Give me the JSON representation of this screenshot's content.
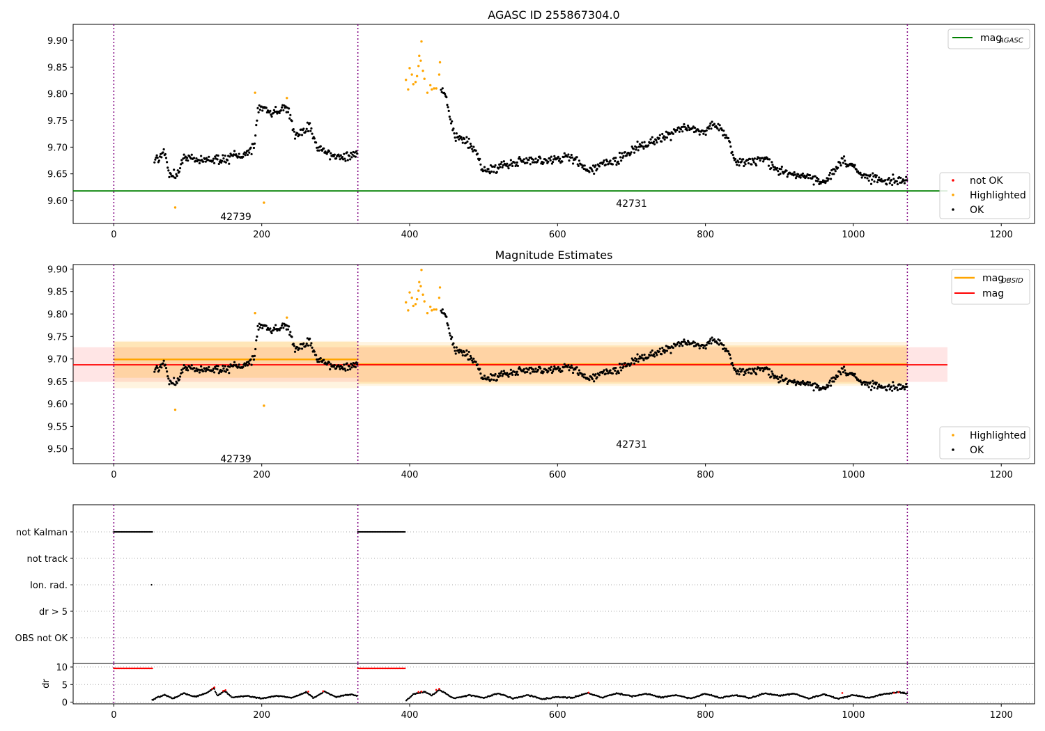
{
  "chart_data": [
    {
      "type": "scatter",
      "title": "AGASC ID 255867304.0",
      "x_ticks": [
        0,
        200,
        400,
        600,
        800,
        1000,
        1200
      ],
      "y_ticks": [
        "9.60",
        "9.65",
        "9.70",
        "9.75",
        "9.80",
        "9.85",
        "9.90"
      ],
      "xlim": [
        -55,
        1245
      ],
      "ylim": [
        9.557,
        9.93
      ],
      "mag_agasc": 9.618,
      "obsid_boundaries": [
        0,
        330,
        1073
      ],
      "obsid_labels": [
        {
          "text": "42739",
          "x": 165,
          "y": 9.57
        },
        {
          "text": "42731",
          "x": 700,
          "y": 9.595
        }
      ],
      "legend_upper": [
        {
          "name": "mag",
          "sub": "AGASC",
          "color": "#008000"
        }
      ],
      "legend_lower": [
        {
          "name": "not OK",
          "color": "#ff0000"
        },
        {
          "name": "Highlighted",
          "color": "#ffa500"
        },
        {
          "name": "OK",
          "color": "#000000"
        }
      ],
      "legend_upper_position": "top-right",
      "legend_lower_position": "bottom-right",
      "grid": false,
      "trend": [
        [
          55,
          9.675
        ],
        [
          70,
          9.69
        ],
        [
          75,
          9.65
        ],
        [
          85,
          9.645
        ],
        [
          95,
          9.685
        ],
        [
          120,
          9.675
        ],
        [
          150,
          9.678
        ],
        [
          175,
          9.683
        ],
        [
          190,
          9.7
        ],
        [
          195,
          9.775
        ],
        [
          215,
          9.765
        ],
        [
          235,
          9.775
        ],
        [
          245,
          9.72
        ],
        [
          265,
          9.74
        ],
        [
          275,
          9.695
        ],
        [
          300,
          9.682
        ],
        [
          330,
          9.684
        ],
        [
          395,
          9.826
        ],
        [
          420,
          9.815
        ],
        [
          440,
          9.83
        ],
        [
          450,
          9.782
        ],
        [
          460,
          9.725
        ],
        [
          475,
          9.712
        ],
        [
          490,
          9.69
        ],
        [
          500,
          9.655
        ],
        [
          540,
          9.672
        ],
        [
          580,
          9.675
        ],
        [
          620,
          9.68
        ],
        [
          640,
          9.655
        ],
        [
          660,
          9.668
        ],
        [
          680,
          9.675
        ],
        [
          710,
          9.7
        ],
        [
          740,
          9.715
        ],
        [
          765,
          9.735
        ],
        [
          800,
          9.73
        ],
        [
          810,
          9.748
        ],
        [
          830,
          9.72
        ],
        [
          840,
          9.672
        ],
        [
          880,
          9.675
        ],
        [
          900,
          9.655
        ],
        [
          940,
          9.645
        ],
        [
          960,
          9.63
        ],
        [
          985,
          9.675
        ],
        [
          1000,
          9.665
        ],
        [
          1010,
          9.645
        ],
        [
          1040,
          9.64
        ],
        [
          1073,
          9.636
        ]
      ],
      "highlighted_points": [
        [
          83,
          9.587
        ],
        [
          203,
          9.596
        ],
        [
          191,
          9.802
        ],
        [
          234,
          9.792
        ],
        [
          395,
          9.826
        ],
        [
          398,
          9.808
        ],
        [
          400,
          9.848
        ],
        [
          403,
          9.836
        ],
        [
          405,
          9.818
        ],
        [
          408,
          9.822
        ],
        [
          410,
          9.833
        ],
        [
          412,
          9.852
        ],
        [
          413,
          9.871
        ],
        [
          415,
          9.862
        ],
        [
          416,
          9.898
        ],
        [
          418,
          9.843
        ],
        [
          420,
          9.828
        ],
        [
          424,
          9.802
        ],
        [
          428,
          9.816
        ],
        [
          430,
          9.808
        ],
        [
          433,
          9.81
        ],
        [
          436,
          9.81
        ],
        [
          440,
          9.836
        ],
        [
          441,
          9.859
        ]
      ]
    },
    {
      "type": "scatter",
      "title": "Magnitude Estimates",
      "x_ticks": [
        0,
        200,
        400,
        600,
        800,
        1000,
        1200
      ],
      "y_ticks": [
        "9.50",
        "9.55",
        "9.60",
        "9.65",
        "9.70",
        "9.75",
        "9.80",
        "9.85",
        "9.90"
      ],
      "xlim": [
        -55,
        1245
      ],
      "ylim": [
        9.467,
        9.91
      ],
      "mag": 9.687,
      "mag_band": [
        9.649,
        9.726
      ],
      "mag_obsid": [
        {
          "x0": 0,
          "x1": 330,
          "value": 9.699,
          "inner": [
            9.658,
            9.738
          ],
          "outer": [
            9.635,
            9.74
          ]
        },
        {
          "x0": 330,
          "x1": 1073,
          "value": 9.688,
          "inner": [
            9.645,
            9.73
          ],
          "outer": [
            9.64,
            9.738
          ]
        }
      ],
      "obsid_boundaries": [
        0,
        330,
        1073
      ],
      "obsid_labels": [
        {
          "text": "42739",
          "x": 165,
          "y": 9.478
        },
        {
          "text": "42731",
          "x": 700,
          "y": 9.51
        }
      ],
      "legend_upper": [
        {
          "name": "mag",
          "sub": "OBSID",
          "color": "#ffa500"
        },
        {
          "name": "mag",
          "sub": "",
          "color": "#ff0000"
        }
      ],
      "legend_lower": [
        {
          "name": "Highlighted",
          "color": "#ffa500"
        },
        {
          "name": "OK",
          "color": "#000000"
        }
      ],
      "legend_upper_position": "top-right",
      "legend_lower_position": "bottom-right",
      "grid": false
    },
    {
      "type": "scatter",
      "flags": [
        "not Kalman",
        "not track",
        "Ion. rad.",
        "dr > 5",
        "OBS not OK"
      ],
      "flag_segments": [
        {
          "flag": "not Kalman",
          "x0": 0,
          "x1": 52
        },
        {
          "flag": "not Kalman",
          "x0": 330,
          "x1": 395
        },
        {
          "flag": "Ion. rad.",
          "x0": 51,
          "x1": 51
        }
      ],
      "dr_label": "dr",
      "dr_ticks": [
        "0",
        "5",
        "10"
      ],
      "dr_ylim": [
        -0.5,
        11
      ],
      "dr_saturated": [
        {
          "x0": 0,
          "x1": 52,
          "value": 9.6
        },
        {
          "x0": 330,
          "x1": 395,
          "value": 9.6
        }
      ],
      "dr_trend": [
        [
          52,
          0.5
        ],
        [
          60,
          1.5
        ],
        [
          70,
          2.0
        ],
        [
          80,
          1.0
        ],
        [
          95,
          2.5
        ],
        [
          110,
          1.5
        ],
        [
          125,
          2.5
        ],
        [
          135,
          4.0
        ],
        [
          140,
          1.8
        ],
        [
          150,
          3.2
        ],
        [
          160,
          1.3
        ],
        [
          180,
          1.8
        ],
        [
          200,
          1.0
        ],
        [
          220,
          1.8
        ],
        [
          240,
          1.2
        ],
        [
          260,
          2.8
        ],
        [
          270,
          1.2
        ],
        [
          285,
          3.0
        ],
        [
          300,
          1.5
        ],
        [
          320,
          2.2
        ],
        [
          330,
          1.8
        ],
        [
          395,
          0.5
        ],
        [
          405,
          2.2
        ],
        [
          420,
          3.0
        ],
        [
          430,
          1.8
        ],
        [
          440,
          3.5
        ],
        [
          460,
          1.0
        ],
        [
          480,
          2.0
        ],
        [
          500,
          1.2
        ],
        [
          520,
          2.5
        ],
        [
          540,
          1.0
        ],
        [
          560,
          2.0
        ],
        [
          580,
          0.8
        ],
        [
          600,
          1.5
        ],
        [
          620,
          1.2
        ],
        [
          640,
          2.6
        ],
        [
          660,
          1.3
        ],
        [
          680,
          2.5
        ],
        [
          700,
          1.6
        ],
        [
          720,
          2.4
        ],
        [
          740,
          1.3
        ],
        [
          760,
          2.0
        ],
        [
          780,
          1.0
        ],
        [
          800,
          2.4
        ],
        [
          820,
          1.2
        ],
        [
          840,
          2.0
        ],
        [
          860,
          1.1
        ],
        [
          880,
          2.5
        ],
        [
          900,
          1.8
        ],
        [
          920,
          2.4
        ],
        [
          940,
          1.0
        ],
        [
          960,
          2.2
        ],
        [
          980,
          1.0
        ],
        [
          1000,
          2.0
        ],
        [
          1020,
          1.2
        ],
        [
          1040,
          2.2
        ],
        [
          1060,
          2.8
        ],
        [
          1073,
          2.5
        ]
      ],
      "dr_red_points": [
        [
          133,
          3.8
        ],
        [
          136,
          4.2
        ],
        [
          148,
          3.2
        ],
        [
          151,
          3.4
        ],
        [
          263,
          3.0
        ],
        [
          283,
          3.1
        ],
        [
          412,
          2.9
        ],
        [
          416,
          3.0
        ],
        [
          436,
          3.5
        ],
        [
          440,
          3.8
        ],
        [
          642,
          2.7
        ],
        [
          985,
          2.6
        ],
        [
          1055,
          2.6
        ],
        [
          1061,
          2.8
        ]
      ],
      "x_ticks": [
        0,
        200,
        400,
        600,
        800,
        1000,
        1200
      ],
      "xlim": [
        -55,
        1245
      ]
    }
  ]
}
